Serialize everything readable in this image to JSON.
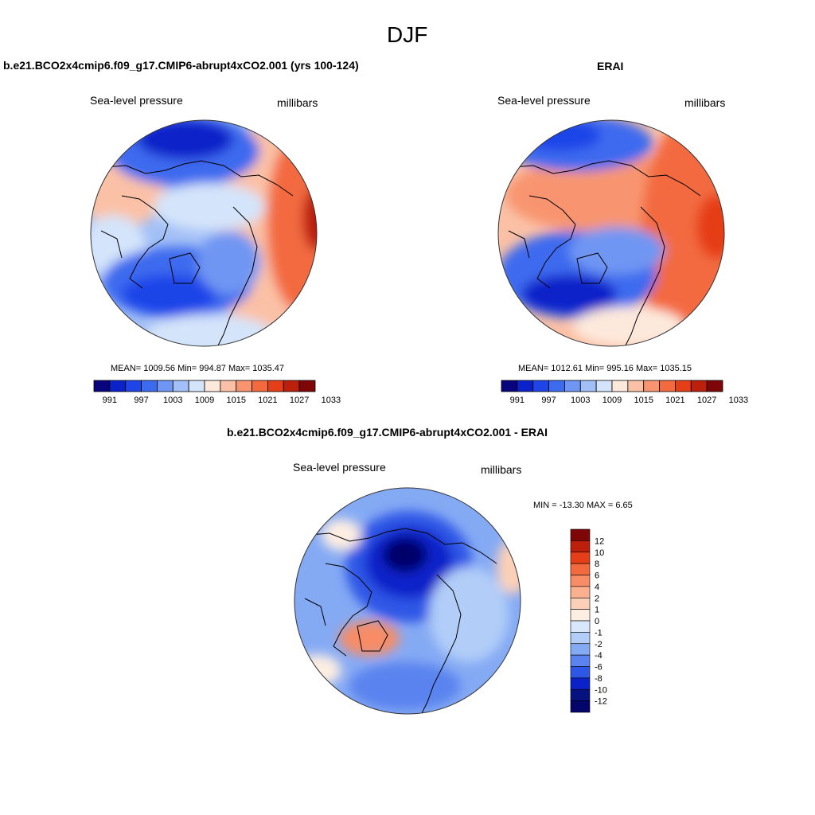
{
  "figure_title": "DJF",
  "panels": [
    {
      "title": "b.e21.BCO2x4cmip6.f09_g17.CMIP6-abrupt4xCO2.001 (yrs 100-124)",
      "variable": "Sea-level pressure",
      "units": "millibars",
      "stats": "MEAN= 1009.56  Min= 994.87  Max= 1035.47"
    },
    {
      "title": "ERAI",
      "variable": "Sea-level pressure",
      "units": "millibars",
      "stats": "MEAN= 1012.61  Min= 995.16  Max= 1035.15"
    },
    {
      "title": "b.e21.BCO2x4cmip6.f09_g17.CMIP6-abrupt4xCO2.001 - ERAI",
      "variable": "Sea-level pressure",
      "units": "millibars",
      "stats": "MIN = -13.30 MAX =   6.65"
    }
  ],
  "abs_colorbar": {
    "labels": [
      "991",
      "997",
      "1003",
      "1009",
      "1015",
      "1021",
      "1027",
      "1033"
    ],
    "colors": [
      "#08047e",
      "#0b21c9",
      "#1f45e8",
      "#3d6bef",
      "#6f96f3",
      "#a3c0f6",
      "#d4e4fa",
      "#fde9dc",
      "#fbc1a6",
      "#f89570",
      "#f36a3f",
      "#e53e18",
      "#bc1f0c",
      "#7e0606"
    ]
  },
  "diff_colorbar": {
    "labels": [
      "12",
      "10",
      "8",
      "6",
      "4",
      "2",
      "1",
      "0",
      "-1",
      "-2",
      "-4",
      "-6",
      "-8",
      "-10",
      "-12"
    ],
    "colors": [
      "#7e0606",
      "#bc1f0c",
      "#e53e18",
      "#f36a3f",
      "#f78c66",
      "#fab08e",
      "#fcd0b8",
      "#fdeee2",
      "#d9e7fa",
      "#b1cdf8",
      "#85aaf4",
      "#5a83ef",
      "#2f57e6",
      "#0b21c9",
      "#06127f",
      "#04056a"
    ]
  },
  "palette": {
    "deep_blue": "#0b21c9",
    "blue": "#3d6bef",
    "light_blue": "#a3c0f6",
    "pale_blue": "#d4e4fa",
    "pale_red": "#fde9dc",
    "light_red": "#fbc1a6",
    "red": "#f36a3f",
    "deep_red": "#bc1f0c"
  }
}
